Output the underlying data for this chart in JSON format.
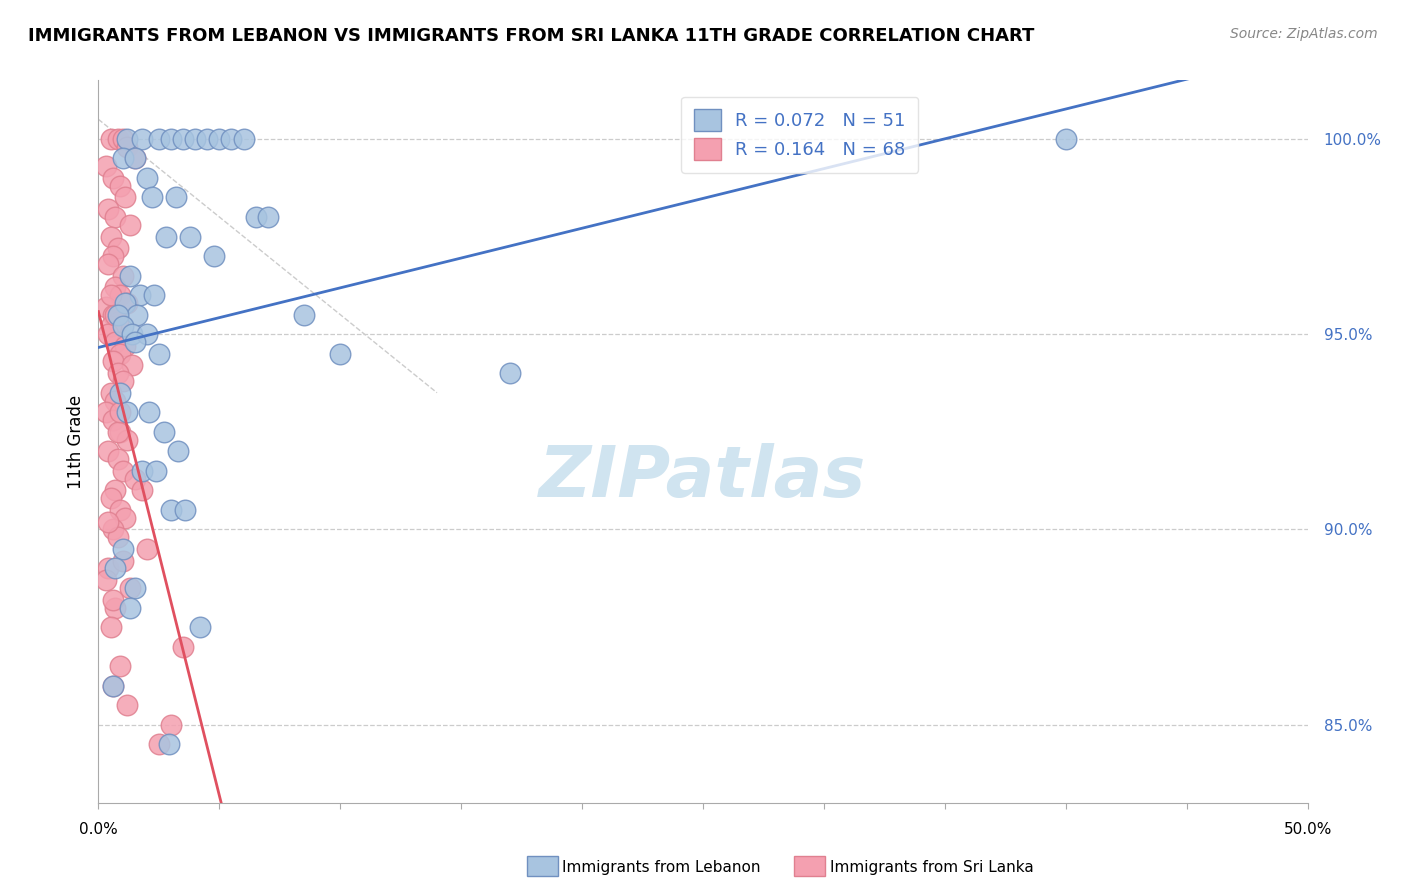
{
  "title": "IMMIGRANTS FROM LEBANON VS IMMIGRANTS FROM SRI LANKA 11TH GRADE CORRELATION CHART",
  "source": "Source: ZipAtlas.com",
  "ylabel": "11th Grade",
  "xmin": 0.0,
  "xmax": 50.0,
  "ymin": 83.0,
  "ymax": 101.5,
  "yticks": [
    85,
    90,
    95,
    100
  ],
  "R_blue": 0.072,
  "N_blue": 51,
  "R_pink": 0.164,
  "N_pink": 68,
  "blue_color": "#a8c4e0",
  "pink_color": "#f4a0b0",
  "blue_edge_color": "#7090c0",
  "pink_edge_color": "#e08090",
  "blue_line_color": "#4472c4",
  "pink_line_color": "#e05060",
  "grid_color": "#cccccc",
  "watermark_color": "#d0e4f0",
  "blue_scatter_x": [
    1.2,
    1.8,
    2.5,
    3.0,
    3.5,
    4.0,
    4.5,
    5.0,
    5.5,
    6.0,
    1.0,
    1.5,
    2.0,
    2.2,
    3.2,
    6.5,
    7.0,
    2.8,
    3.8,
    4.8,
    1.3,
    1.7,
    2.3,
    1.1,
    1.6,
    0.8,
    1.0,
    1.4,
    2.0,
    1.5,
    2.5,
    10.0,
    17.0,
    0.9,
    1.2,
    2.1,
    2.7,
    3.3,
    1.8,
    2.4,
    3.0,
    3.6,
    1.0,
    8.5,
    0.7,
    1.5,
    2.9,
    1.3,
    40.0,
    4.2,
    0.6
  ],
  "blue_scatter_y": [
    100.0,
    100.0,
    100.0,
    100.0,
    100.0,
    100.0,
    100.0,
    100.0,
    100.0,
    100.0,
    99.5,
    99.5,
    99.0,
    98.5,
    98.5,
    98.0,
    98.0,
    97.5,
    97.5,
    97.0,
    96.5,
    96.0,
    96.0,
    95.8,
    95.5,
    95.5,
    95.2,
    95.0,
    95.0,
    94.8,
    94.5,
    94.5,
    94.0,
    93.5,
    93.0,
    93.0,
    92.5,
    92.0,
    91.5,
    91.5,
    90.5,
    90.5,
    89.5,
    95.5,
    89.0,
    88.5,
    84.5,
    88.0,
    100.0,
    87.5,
    86.0
  ],
  "pink_scatter_x": [
    0.5,
    0.8,
    1.0,
    1.2,
    1.5,
    0.3,
    0.6,
    0.9,
    1.1,
    0.4,
    0.7,
    1.3,
    0.5,
    0.8,
    0.6,
    0.4,
    1.0,
    0.7,
    0.9,
    1.2,
    0.3,
    0.6,
    0.8,
    0.5,
    0.4,
    0.7,
    1.1,
    0.9,
    0.6,
    1.4,
    0.8,
    1.0,
    0.5,
    0.7,
    0.3,
    0.6,
    0.9,
    1.2,
    0.4,
    0.8,
    1.0,
    1.5,
    0.7,
    0.5,
    0.9,
    1.1,
    0.6,
    0.8,
    2.0,
    0.4,
    0.3,
    1.3,
    0.7,
    0.5,
    3.5,
    0.9,
    0.6,
    1.2,
    3.0,
    2.5,
    0.8,
    1.8,
    0.4,
    1.0,
    0.6,
    0.7,
    0.5,
    0.9
  ],
  "pink_scatter_y": [
    100.0,
    100.0,
    100.0,
    99.8,
    99.5,
    99.3,
    99.0,
    98.8,
    98.5,
    98.2,
    98.0,
    97.8,
    97.5,
    97.2,
    97.0,
    96.8,
    96.5,
    96.2,
    96.0,
    95.8,
    95.7,
    95.5,
    95.3,
    95.2,
    95.0,
    94.8,
    94.7,
    94.5,
    94.3,
    94.2,
    94.0,
    93.8,
    93.5,
    93.3,
    93.0,
    92.8,
    92.5,
    92.3,
    92.0,
    91.8,
    91.5,
    91.3,
    91.0,
    90.8,
    90.5,
    90.3,
    90.0,
    89.8,
    89.5,
    89.0,
    88.7,
    88.5,
    88.0,
    87.5,
    87.0,
    86.5,
    86.0,
    85.5,
    85.0,
    84.5,
    92.5,
    91.0,
    90.2,
    89.2,
    88.2,
    95.5,
    96.0,
    93.0
  ]
}
